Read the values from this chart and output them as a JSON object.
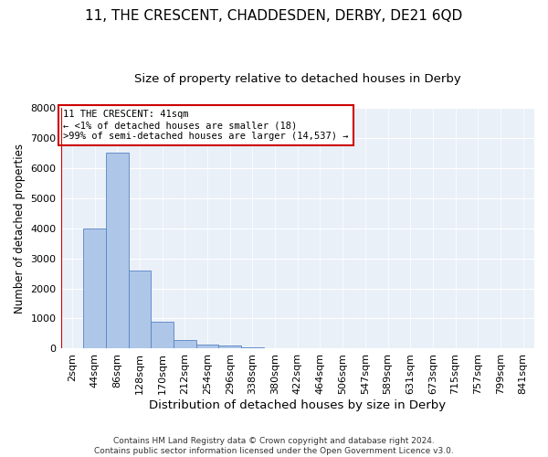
{
  "title": "11, THE CRESCENT, CHADDESDEN, DERBY, DE21 6QD",
  "subtitle": "Size of property relative to detached houses in Derby",
  "xlabel": "Distribution of detached houses by size in Derby",
  "ylabel": "Number of detached properties",
  "footer_line1": "Contains HM Land Registry data © Crown copyright and database right 2024.",
  "footer_line2": "Contains public sector information licensed under the Open Government Licence v3.0.",
  "annotation_line1": "11 THE CRESCENT: 41sqm",
  "annotation_line2": "← <1% of detached houses are smaller (18)",
  "annotation_line3": ">99% of semi-detached houses are larger (14,537) →",
  "bar_labels": [
    "2sqm",
    "44sqm",
    "86sqm",
    "128sqm",
    "170sqm",
    "212sqm",
    "254sqm",
    "296sqm",
    "338sqm",
    "380sqm",
    "422sqm",
    "464sqm",
    "506sqm",
    "547sqm",
    "589sqm",
    "631sqm",
    "673sqm",
    "715sqm",
    "757sqm",
    "799sqm",
    "841sqm"
  ],
  "bar_values": [
    18,
    4000,
    6500,
    2600,
    900,
    280,
    150,
    90,
    55,
    20,
    0,
    0,
    0,
    0,
    0,
    0,
    0,
    0,
    0,
    0,
    0
  ],
  "bar_color": "#aec6e8",
  "bar_edge_color": "#5585c5",
  "vline_color": "#cc0000",
  "annotation_box_color": "#cc0000",
  "bg_color": "#eaf0f8",
  "ylim": [
    0,
    8000
  ],
  "yticks": [
    0,
    1000,
    2000,
    3000,
    4000,
    5000,
    6000,
    7000,
    8000
  ],
  "title_fontsize": 11,
  "subtitle_fontsize": 9.5,
  "xlabel_fontsize": 9.5,
  "ylabel_fontsize": 8.5,
  "tick_fontsize": 8,
  "annotation_fontsize": 7.5,
  "footer_fontsize": 6.5
}
